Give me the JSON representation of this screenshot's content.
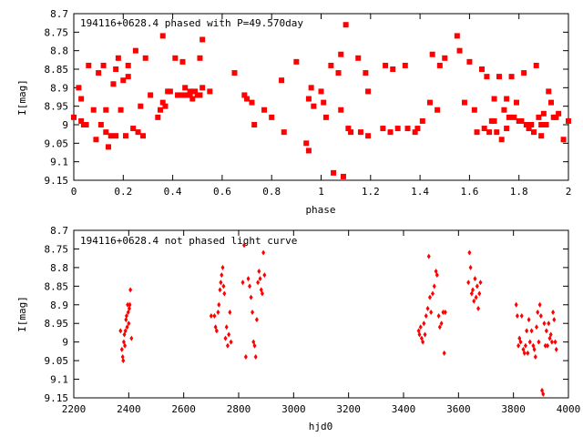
{
  "chart_data": [
    {
      "type": "scatter",
      "title": "194116+0628.4 phased with P=49.570day",
      "xlabel": "phase",
      "ylabel": "I[mag]",
      "xlim": [
        0,
        2
      ],
      "ylim": [
        9.15,
        8.7
      ],
      "y_inverted": true,
      "grid": false,
      "xticks": [
        0,
        0.2,
        0.4,
        0.6,
        0.8,
        1,
        1.2,
        1.4,
        1.6,
        1.8,
        2
      ],
      "xtick_labels": [
        "0",
        "0.2",
        "0.4",
        "0.6",
        "0.8",
        "1",
        "1.2",
        "1.4",
        "1.6",
        "1.8",
        "2"
      ],
      "yticks": [
        8.7,
        8.75,
        8.8,
        8.85,
        8.9,
        8.95,
        9,
        9.05,
        9.1,
        9.15
      ],
      "ytick_labels": [
        "8.7",
        "8.75",
        "8.8",
        "8.85",
        "8.9",
        "8.95",
        "9",
        "9.05",
        "9.1",
        "9.15"
      ],
      "marker_color": "#ff0000",
      "marker": "square",
      "points": [
        [
          0.0,
          8.98
        ],
        [
          0.02,
          8.9
        ],
        [
          0.03,
          8.93
        ],
        [
          0.03,
          8.99
        ],
        [
          0.04,
          9.0
        ],
        [
          0.05,
          9.0
        ],
        [
          0.06,
          8.84
        ],
        [
          0.08,
          8.96
        ],
        [
          0.09,
          9.04
        ],
        [
          0.1,
          8.86
        ],
        [
          0.11,
          9.0
        ],
        [
          0.12,
          8.84
        ],
        [
          0.13,
          9.02
        ],
        [
          0.13,
          8.96
        ],
        [
          0.14,
          9.06
        ],
        [
          0.15,
          9.03
        ],
        [
          0.16,
          8.89
        ],
        [
          0.17,
          9.03
        ],
        [
          0.17,
          8.85
        ],
        [
          0.18,
          8.82
        ],
        [
          0.19,
          8.96
        ],
        [
          0.2,
          8.88
        ],
        [
          0.21,
          9.03
        ],
        [
          0.22,
          8.87
        ],
        [
          0.22,
          8.84
        ],
        [
          0.24,
          9.01
        ],
        [
          0.25,
          8.8
        ],
        [
          0.26,
          9.02
        ],
        [
          0.27,
          8.95
        ],
        [
          0.28,
          9.03
        ],
        [
          0.29,
          8.82
        ],
        [
          0.31,
          8.92
        ],
        [
          0.34,
          8.98
        ],
        [
          0.35,
          8.96
        ],
        [
          0.36,
          8.76
        ],
        [
          0.36,
          8.94
        ],
        [
          0.37,
          8.95
        ],
        [
          0.38,
          8.91
        ],
        [
          0.39,
          8.91
        ],
        [
          0.41,
          8.82
        ],
        [
          0.42,
          8.92
        ],
        [
          0.43,
          8.92
        ],
        [
          0.44,
          8.83
        ],
        [
          0.45,
          8.9
        ],
        [
          0.45,
          8.92
        ],
        [
          0.46,
          8.92
        ],
        [
          0.47,
          8.92
        ],
        [
          0.47,
          8.91
        ],
        [
          0.48,
          8.93
        ],
        [
          0.49,
          8.91
        ],
        [
          0.5,
          8.92
        ],
        [
          0.51,
          8.82
        ],
        [
          0.51,
          8.92
        ],
        [
          0.52,
          8.77
        ],
        [
          0.52,
          8.9
        ],
        [
          0.55,
          8.91
        ],
        [
          0.65,
          8.86
        ],
        [
          0.69,
          8.92
        ],
        [
          0.7,
          8.93
        ],
        [
          0.72,
          8.94
        ],
        [
          0.73,
          9.0
        ],
        [
          0.77,
          8.96
        ],
        [
          0.8,
          8.98
        ],
        [
          0.84,
          8.88
        ],
        [
          0.85,
          9.02
        ],
        [
          0.9,
          8.83
        ],
        [
          0.94,
          9.05
        ],
        [
          0.95,
          8.93
        ],
        [
          0.95,
          9.07
        ],
        [
          0.96,
          8.9
        ],
        [
          0.97,
          8.95
        ],
        [
          1.0,
          8.91
        ],
        [
          1.01,
          8.94
        ],
        [
          1.02,
          8.98
        ],
        [
          1.04,
          8.84
        ],
        [
          1.05,
          9.13
        ],
        [
          1.07,
          8.86
        ],
        [
          1.08,
          8.96
        ],
        [
          1.08,
          8.81
        ],
        [
          1.09,
          9.14
        ],
        [
          1.1,
          8.73
        ],
        [
          1.11,
          9.01
        ],
        [
          1.12,
          9.02
        ],
        [
          1.15,
          8.82
        ],
        [
          1.16,
          9.02
        ],
        [
          1.18,
          8.86
        ],
        [
          1.19,
          8.91
        ],
        [
          1.19,
          9.03
        ],
        [
          1.25,
          9.01
        ],
        [
          1.26,
          8.84
        ],
        [
          1.28,
          9.02
        ],
        [
          1.29,
          8.85
        ],
        [
          1.31,
          9.01
        ],
        [
          1.34,
          8.84
        ],
        [
          1.35,
          9.01
        ],
        [
          1.38,
          9.02
        ],
        [
          1.39,
          9.01
        ],
        [
          1.41,
          8.99
        ],
        [
          1.44,
          8.94
        ],
        [
          1.45,
          8.81
        ],
        [
          1.47,
          8.96
        ],
        [
          1.48,
          8.84
        ],
        [
          1.5,
          8.82
        ],
        [
          1.55,
          8.76
        ],
        [
          1.56,
          8.8
        ],
        [
          1.58,
          8.94
        ],
        [
          1.6,
          8.83
        ],
        [
          1.62,
          8.96
        ],
        [
          1.63,
          9.02
        ],
        [
          1.65,
          8.85
        ],
        [
          1.66,
          9.01
        ],
        [
          1.67,
          8.87
        ],
        [
          1.68,
          9.02
        ],
        [
          1.69,
          8.99
        ],
        [
          1.7,
          8.93
        ],
        [
          1.7,
          8.99
        ],
        [
          1.71,
          9.02
        ],
        [
          1.72,
          8.87
        ],
        [
          1.73,
          9.04
        ],
        [
          1.74,
          8.96
        ],
        [
          1.75,
          8.93
        ],
        [
          1.75,
          9.01
        ],
        [
          1.76,
          8.98
        ],
        [
          1.77,
          8.87
        ],
        [
          1.78,
          8.98
        ],
        [
          1.79,
          8.94
        ],
        [
          1.8,
          8.99
        ],
        [
          1.81,
          8.99
        ],
        [
          1.82,
          8.86
        ],
        [
          1.83,
          9.0
        ],
        [
          1.84,
          9.01
        ],
        [
          1.85,
          9.0
        ],
        [
          1.86,
          9.02
        ],
        [
          1.87,
          8.84
        ],
        [
          1.88,
          8.98
        ],
        [
          1.89,
          9.0
        ],
        [
          1.89,
          9.03
        ],
        [
          1.9,
          8.97
        ],
        [
          1.91,
          9.0
        ],
        [
          1.92,
          8.91
        ],
        [
          1.93,
          8.94
        ],
        [
          1.94,
          8.98
        ],
        [
          1.95,
          8.98
        ],
        [
          1.96,
          8.97
        ],
        [
          1.98,
          9.04
        ],
        [
          2.0,
          8.99
        ]
      ]
    },
    {
      "type": "scatter",
      "title": "194116+0628.4 not phased light curve",
      "xlabel": "hjd0",
      "ylabel": "I[mag]",
      "xlim": [
        2200,
        4000
      ],
      "ylim": [
        9.15,
        8.7
      ],
      "y_inverted": true,
      "grid": false,
      "xticks": [
        2200,
        2400,
        2600,
        2800,
        3000,
        3200,
        3400,
        3600,
        3800,
        4000
      ],
      "xtick_labels": [
        "2200",
        "2400",
        "2600",
        "2800",
        "3000",
        "3200",
        "3400",
        "3600",
        "3800",
        "4000"
      ],
      "yticks": [
        8.7,
        8.75,
        8.8,
        8.85,
        8.9,
        8.95,
        9,
        9.05,
        9.1,
        9.15
      ],
      "ytick_labels": [
        "8.7",
        "8.75",
        "8.8",
        "8.85",
        "8.9",
        "8.95",
        "9",
        "9.05",
        "9.1",
        "9.15"
      ],
      "marker_color": "#ff0000",
      "marker": "diamond",
      "points": [
        [
          2370,
          8.97
        ],
        [
          2375,
          9.02
        ],
        [
          2378,
          9.04
        ],
        [
          2380,
          9.05
        ],
        [
          2382,
          9.0
        ],
        [
          2384,
          8.98
        ],
        [
          2386,
          9.01
        ],
        [
          2388,
          8.97
        ],
        [
          2390,
          8.94
        ],
        [
          2392,
          8.93
        ],
        [
          2394,
          8.96
        ],
        [
          2396,
          8.9
        ],
        [
          2398,
          8.92
        ],
        [
          2400,
          8.95
        ],
        [
          2402,
          8.91
        ],
        [
          2404,
          8.9
        ],
        [
          2406,
          8.86
        ],
        [
          2410,
          8.99
        ],
        [
          2700,
          8.93
        ],
        [
          2712,
          8.93
        ],
        [
          2716,
          8.96
        ],
        [
          2720,
          8.97
        ],
        [
          2725,
          8.92
        ],
        [
          2728,
          8.9
        ],
        [
          2732,
          8.86
        ],
        [
          2735,
          8.84
        ],
        [
          2738,
          8.82
        ],
        [
          2742,
          8.8
        ],
        [
          2745,
          8.85
        ],
        [
          2748,
          8.87
        ],
        [
          2752,
          8.99
        ],
        [
          2756,
          8.96
        ],
        [
          2760,
          9.01
        ],
        [
          2764,
          8.98
        ],
        [
          2768,
          8.92
        ],
        [
          2772,
          9.0
        ],
        [
          2815,
          8.84
        ],
        [
          2820,
          8.74
        ],
        [
          2826,
          9.04
        ],
        [
          2835,
          8.83
        ],
        [
          2840,
          8.85
        ],
        [
          2845,
          8.88
        ],
        [
          2850,
          8.92
        ],
        [
          2854,
          9.0
        ],
        [
          2858,
          9.01
        ],
        [
          2862,
          9.04
        ],
        [
          2866,
          8.94
        ],
        [
          2870,
          8.84
        ],
        [
          2874,
          8.81
        ],
        [
          2878,
          8.83
        ],
        [
          2882,
          8.86
        ],
        [
          2886,
          8.87
        ],
        [
          2890,
          8.76
        ],
        [
          2894,
          8.82
        ],
        [
          3455,
          8.97
        ],
        [
          3458,
          8.98
        ],
        [
          3462,
          8.96
        ],
        [
          3466,
          8.99
        ],
        [
          3470,
          9.0
        ],
        [
          3474,
          8.95
        ],
        [
          3478,
          8.98
        ],
        [
          3482,
          8.93
        ],
        [
          3488,
          8.91
        ],
        [
          3492,
          8.77
        ],
        [
          3496,
          8.88
        ],
        [
          3500,
          8.92
        ],
        [
          3506,
          8.87
        ],
        [
          3512,
          8.85
        ],
        [
          3518,
          8.81
        ],
        [
          3522,
          8.82
        ],
        [
          3528,
          8.93
        ],
        [
          3532,
          8.96
        ],
        [
          3538,
          8.95
        ],
        [
          3544,
          8.92
        ],
        [
          3548,
          9.03
        ],
        [
          3552,
          8.92
        ],
        [
          3636,
          8.84
        ],
        [
          3640,
          8.76
        ],
        [
          3644,
          8.8
        ],
        [
          3648,
          8.87
        ],
        [
          3652,
          8.86
        ],
        [
          3656,
          8.89
        ],
        [
          3660,
          8.83
        ],
        [
          3664,
          8.88
        ],
        [
          3668,
          8.85
        ],
        [
          3672,
          8.91
        ],
        [
          3676,
          8.87
        ],
        [
          3680,
          8.84
        ],
        [
          3810,
          8.9
        ],
        [
          3814,
          8.93
        ],
        [
          3818,
          9.01
        ],
        [
          3822,
          8.99
        ],
        [
          3826,
          9.0
        ],
        [
          3830,
          8.93
        ],
        [
          3836,
          9.02
        ],
        [
          3840,
          9.03
        ],
        [
          3844,
          9.01
        ],
        [
          3848,
          8.97
        ],
        [
          3852,
          9.03
        ],
        [
          3856,
          8.94
        ],
        [
          3860,
          9.0
        ],
        [
          3866,
          8.97
        ],
        [
          3872,
          9.01
        ],
        [
          3876,
          9.02
        ],
        [
          3880,
          9.04
        ],
        [
          3884,
          8.96
        ],
        [
          3888,
          8.92
        ],
        [
          3892,
          9.0
        ],
        [
          3896,
          8.9
        ],
        [
          3900,
          8.93
        ],
        [
          3904,
          9.13
        ],
        [
          3908,
          9.14
        ],
        [
          3912,
          8.95
        ],
        [
          3916,
          9.01
        ],
        [
          3920,
          8.97
        ],
        [
          3924,
          9.01
        ],
        [
          3928,
          8.95
        ],
        [
          3932,
          8.99
        ],
        [
          3936,
          8.98
        ],
        [
          3940,
          9.0
        ],
        [
          3944,
          8.92
        ],
        [
          3948,
          8.94
        ],
        [
          3952,
          9.0
        ],
        [
          3956,
          9.02
        ]
      ]
    }
  ]
}
